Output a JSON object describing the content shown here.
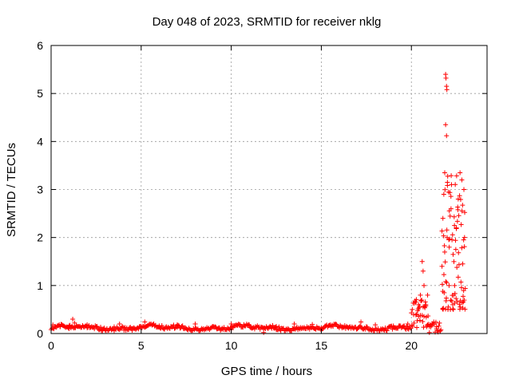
{
  "chart_data": {
    "type": "scatter",
    "title": "Day 048 of 2023, SRMTID for receiver nklg",
    "xlabel": "GPS time / hours",
    "ylabel": "SRMTID / TECUs",
    "xlim": [
      0,
      24.2
    ],
    "ylim": [
      0,
      6
    ],
    "x_ticks": [
      0,
      5,
      10,
      15,
      20
    ],
    "y_ticks": [
      0,
      1,
      2,
      3,
      4,
      5,
      6
    ],
    "grid": true,
    "marker": "+",
    "color": "#ff0000",
    "series": [
      {
        "name": "SRMTID",
        "baseline_segments": [
          {
            "x_start": 0.0,
            "x_end": 20.0,
            "value_range": [
              0.06,
              0.24
            ],
            "note": "dense baseline ~0.15 TECU"
          }
        ],
        "points": [
          {
            "x": 0.1,
            "y": 0.18
          },
          {
            "x": 0.5,
            "y": 0.14
          },
          {
            "x": 1.0,
            "y": 0.16
          },
          {
            "x": 1.2,
            "y": 0.3
          },
          {
            "x": 1.3,
            "y": 0.22
          },
          {
            "x": 2.0,
            "y": 0.12
          },
          {
            "x": 2.8,
            "y": 0.06
          },
          {
            "x": 3.5,
            "y": 0.14
          },
          {
            "x": 3.8,
            "y": 0.2
          },
          {
            "x": 4.5,
            "y": 0.1
          },
          {
            "x": 5.2,
            "y": 0.24
          },
          {
            "x": 6.0,
            "y": 0.16
          },
          {
            "x": 7.0,
            "y": 0.18
          },
          {
            "x": 8.0,
            "y": 0.2
          },
          {
            "x": 9.0,
            "y": 0.15
          },
          {
            "x": 10.0,
            "y": 0.2
          },
          {
            "x": 11.0,
            "y": 0.18
          },
          {
            "x": 11.8,
            "y": 0.02
          },
          {
            "x": 12.5,
            "y": 0.15
          },
          {
            "x": 13.5,
            "y": 0.2
          },
          {
            "x": 14.5,
            "y": 0.19
          },
          {
            "x": 15.5,
            "y": 0.18
          },
          {
            "x": 16.5,
            "y": 0.12
          },
          {
            "x": 17.2,
            "y": 0.24
          },
          {
            "x": 18.0,
            "y": 0.18
          },
          {
            "x": 19.0,
            "y": 0.16
          },
          {
            "x": 19.8,
            "y": 0.2
          },
          {
            "x": 20.3,
            "y": 0.4
          },
          {
            "x": 20.4,
            "y": 0.6
          },
          {
            "x": 20.5,
            "y": 0.8
          },
          {
            "x": 20.6,
            "y": 1.5
          },
          {
            "x": 20.65,
            "y": 1.3
          },
          {
            "x": 20.7,
            "y": 1.0
          },
          {
            "x": 20.8,
            "y": 0.6
          },
          {
            "x": 20.9,
            "y": 0.8
          },
          {
            "x": 21.0,
            "y": 0.02
          },
          {
            "x": 21.2,
            "y": 0.2
          },
          {
            "x": 21.4,
            "y": 0.1
          },
          {
            "x": 21.6,
            "y": 0.05
          },
          {
            "x": 21.7,
            "y": 1.4
          },
          {
            "x": 21.75,
            "y": 2.4
          },
          {
            "x": 21.8,
            "y": 2.9
          },
          {
            "x": 21.85,
            "y": 3.35
          },
          {
            "x": 21.9,
            "y": 4.35
          },
          {
            "x": 21.95,
            "y": 4.12
          },
          {
            "x": 21.9,
            "y": 5.4
          },
          {
            "x": 21.92,
            "y": 5.32
          },
          {
            "x": 21.95,
            "y": 5.15
          },
          {
            "x": 21.97,
            "y": 5.08
          },
          {
            "x": 22.0,
            "y": 3.15
          },
          {
            "x": 22.1,
            "y": 1.8
          },
          {
            "x": 22.2,
            "y": 2.6
          },
          {
            "x": 22.3,
            "y": 0.6
          },
          {
            "x": 22.4,
            "y": 1.0
          },
          {
            "x": 22.5,
            "y": 2.2
          },
          {
            "x": 22.6,
            "y": 2.8
          },
          {
            "x": 22.7,
            "y": 3.35
          },
          {
            "x": 22.8,
            "y": 3.2
          },
          {
            "x": 22.85,
            "y": 1.45
          },
          {
            "x": 22.9,
            "y": 1.95
          },
          {
            "x": 22.95,
            "y": 2.0
          }
        ]
      }
    ]
  }
}
